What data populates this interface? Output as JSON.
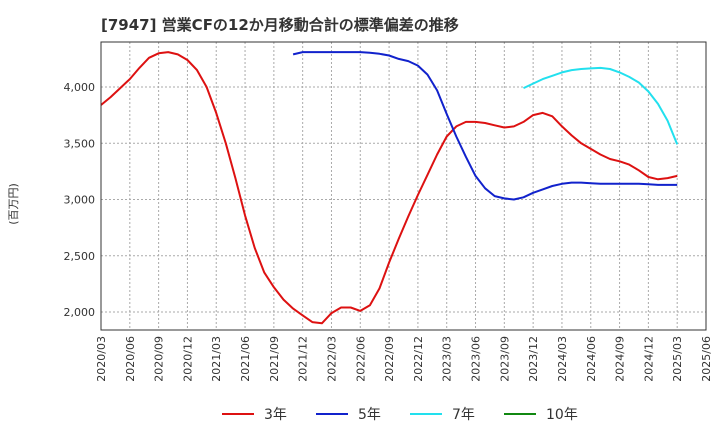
{
  "chart_data": {
    "type": "line",
    "title": "[7947]  営業CFの12か月移動合計の標準偏差の推移",
    "ylabel": "(百万円)",
    "xlabel": "",
    "ylim": [
      1840,
      4400
    ],
    "xlim": [
      "2020/03",
      "2025/06"
    ],
    "grid": true,
    "legend_position": "bottom",
    "y_ticks": [
      2000,
      2500,
      3000,
      3500,
      4000
    ],
    "y_tick_labels": [
      "2,000",
      "2,500",
      "3,000",
      "3,500",
      "4,000"
    ],
    "x_ticks": [
      "2020/03",
      "2020/06",
      "2020/09",
      "2020/12",
      "2021/03",
      "2021/06",
      "2021/09",
      "2021/12",
      "2022/03",
      "2022/06",
      "2022/09",
      "2022/12",
      "2023/03",
      "2023/06",
      "2023/09",
      "2023/12",
      "2024/03",
      "2024/06",
      "2024/09",
      "2024/12",
      "2025/03",
      "2025/06"
    ],
    "series": [
      {
        "name": "3年",
        "color": "#dd1111",
        "x": [
          "2020/03",
          "2020/04",
          "2020/05",
          "2020/06",
          "2020/07",
          "2020/08",
          "2020/09",
          "2020/10",
          "2020/11",
          "2020/12",
          "2021/01",
          "2021/02",
          "2021/03",
          "2021/04",
          "2021/05",
          "2021/06",
          "2021/07",
          "2021/08",
          "2021/09",
          "2021/10",
          "2021/11",
          "2021/12",
          "2022/01",
          "2022/02",
          "2022/03",
          "2022/04",
          "2022/05",
          "2022/06",
          "2022/07",
          "2022/08",
          "2022/09",
          "2022/10",
          "2022/11",
          "2022/12",
          "2023/01",
          "2023/02",
          "2023/03",
          "2023/04",
          "2023/05",
          "2023/06",
          "2023/07",
          "2023/08",
          "2023/09",
          "2023/10",
          "2023/11",
          "2023/12",
          "2024/01",
          "2024/02",
          "2024/03",
          "2024/04",
          "2024/05",
          "2024/06",
          "2024/07",
          "2024/08",
          "2024/09",
          "2024/10",
          "2024/11",
          "2024/12",
          "2025/01",
          "2025/02",
          "2025/03"
        ],
        "values": [
          3840,
          3910,
          3990,
          4070,
          4170,
          4260,
          4300,
          4310,
          4290,
          4240,
          4150,
          4000,
          3770,
          3500,
          3190,
          2860,
          2570,
          2350,
          2220,
          2110,
          2030,
          1970,
          1910,
          1900,
          1990,
          2040,
          2040,
          2010,
          2060,
          2210,
          2440,
          2650,
          2850,
          3040,
          3220,
          3400,
          3560,
          3650,
          3690,
          3690,
          3680,
          3660,
          3640,
          3650,
          3690,
          3750,
          3770,
          3740,
          3650,
          3570,
          3500,
          3450,
          3400,
          3360,
          3340,
          3310,
          3260,
          3200,
          3180,
          3190,
          3210
        ]
      },
      {
        "name": "5年",
        "color": "#1122cc",
        "x": [
          "2021/11",
          "2021/12",
          "2022/01",
          "2022/02",
          "2022/03",
          "2022/04",
          "2022/05",
          "2022/06",
          "2022/07",
          "2022/08",
          "2022/09",
          "2022/10",
          "2022/11",
          "2022/12",
          "2023/01",
          "2023/02",
          "2023/03",
          "2023/04",
          "2023/05",
          "2023/06",
          "2023/07",
          "2023/08",
          "2023/09",
          "2023/10",
          "2023/11",
          "2023/12",
          "2024/01",
          "2024/02",
          "2024/03",
          "2024/04",
          "2024/05",
          "2024/06",
          "2024/07",
          "2024/08",
          "2024/09",
          "2024/10",
          "2024/11",
          "2024/12",
          "2025/01",
          "2025/02",
          "2025/03"
        ],
        "values": [
          4290,
          4310,
          4310,
          4310,
          4310,
          4310,
          4310,
          4310,
          4305,
          4295,
          4280,
          4250,
          4230,
          4190,
          4110,
          3970,
          3760,
          3560,
          3380,
          3210,
          3100,
          3030,
          3010,
          3000,
          3020,
          3060,
          3090,
          3120,
          3140,
          3150,
          3150,
          3145,
          3140,
          3140,
          3140,
          3140,
          3140,
          3135,
          3130,
          3130,
          3130
        ]
      },
      {
        "name": "7年",
        "color": "#22e0ee",
        "x": [
          "2023/11",
          "2023/12",
          "2024/01",
          "2024/02",
          "2024/03",
          "2024/04",
          "2024/05",
          "2024/06",
          "2024/07",
          "2024/08",
          "2024/09",
          "2024/10",
          "2024/11",
          "2024/12",
          "2025/01",
          "2025/02",
          "2025/03"
        ],
        "values": [
          3990,
          4030,
          4070,
          4100,
          4130,
          4150,
          4160,
          4165,
          4170,
          4160,
          4130,
          4090,
          4040,
          3960,
          3850,
          3700,
          3490
        ]
      },
      {
        "name": "10年",
        "color": "#118811",
        "x": [],
        "values": []
      }
    ]
  }
}
